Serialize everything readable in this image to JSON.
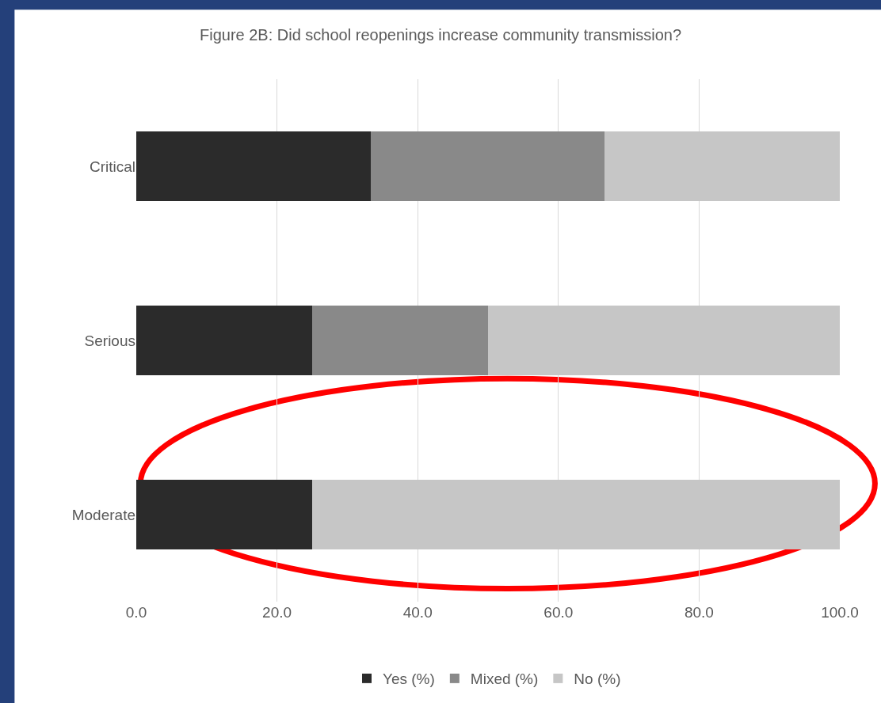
{
  "chart_data": {
    "type": "bar",
    "orientation": "horizontal",
    "stacked": true,
    "title": "Figure 2B: Did school reopenings increase community transmission?",
    "categories": [
      "Critical",
      "Serious",
      "Moderate"
    ],
    "series": [
      {
        "name": "Yes (%)",
        "color": "#2b2b2b",
        "values": [
          33.3,
          25.0,
          25.0
        ]
      },
      {
        "name": "Mixed (%)",
        "color": "#898989",
        "values": [
          33.3,
          25.0,
          0.0
        ]
      },
      {
        "name": "No (%)",
        "color": "#c6c6c6",
        "values": [
          33.4,
          50.0,
          75.0
        ]
      }
    ],
    "xlim": [
      0,
      100
    ],
    "xticks": [
      {
        "value": 0,
        "label": "0.0"
      },
      {
        "value": 20,
        "label": "20.0"
      },
      {
        "value": 40,
        "label": "40.0"
      },
      {
        "value": 60,
        "label": "60.0"
      },
      {
        "value": 80,
        "label": "80.0"
      },
      {
        "value": 100,
        "label": "100.0"
      }
    ],
    "grid": "x",
    "legend": "bottom"
  }
}
